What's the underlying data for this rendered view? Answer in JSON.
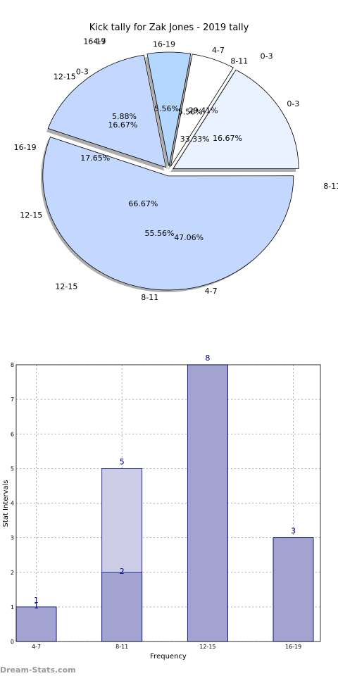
{
  "chart_data": [
    {
      "type": "pie",
      "title": "Kick tally for Zak Jones - 2019 tally",
      "rings": [
        {
          "name": "",
          "slices": [
            {
              "label": "0-3",
              "percent": 33.33,
              "pct_text": "33.33%"
            },
            {
              "label": "4-7",
              "percent": 0,
              "pct_text": ""
            },
            {
              "label": "16-19",
              "percent": 0,
              "pct_text": ""
            },
            {
              "label": "12-15",
              "percent": 66.67,
              "pct_text": "66.67%"
            },
            {
              "label": "8-11",
              "percent": 0,
              "pct_text": ""
            }
          ]
        },
        {
          "name": "",
          "slices": [
            {
              "label": "0-3",
              "percent": 16.67,
              "pct_text": "16.67%"
            },
            {
              "label": "4-7",
              "percent": 5.56,
              "pct_text": "5.56%"
            },
            {
              "label": "16-19",
              "percent": 5.56,
              "pct_text": "5.56%"
            },
            {
              "label": "12-15",
              "percent": 16.67,
              "pct_text": "16.67%"
            },
            {
              "label": "8-11",
              "percent": 55.56,
              "pct_text": "55.56%"
            }
          ]
        },
        {
          "name": "",
          "slices": [
            {
              "label": "8-11",
              "percent": 29.41,
              "pct_text": "29.41%"
            },
            {
              "label": "0-3",
              "percent": 5.88,
              "pct_text": "5.88%"
            },
            {
              "label": "16-19",
              "percent": 17.65,
              "pct_text": "17.65%"
            },
            {
              "label": "12-15",
              "percent": 0,
              "pct_text": ""
            },
            {
              "label": "4-7",
              "percent": 47.06,
              "pct_text": "47.06%"
            }
          ]
        }
      ],
      "colors": [
        "#EBF2FF",
        "#FFFFFF",
        "#B3D7FF",
        "#C4D8FF",
        "#C4D8FF"
      ]
    },
    {
      "type": "bar",
      "title": "",
      "xlabel": "Frequency",
      "ylabel": "Stat Intervals",
      "categories": [
        "4-7",
        "8-11",
        "12-15",
        "16-19"
      ],
      "series": [
        {
          "name": "",
          "values": [
            1,
            5,
            8,
            3
          ]
        },
        {
          "name": "",
          "values": [
            1,
            2,
            8,
            3
          ]
        }
      ],
      "value_labels": [
        "1",
        "5",
        "8",
        "3"
      ],
      "inner_labels": [
        "1",
        "2",
        "",
        ""
      ],
      "ylim": [
        0,
        8
      ],
      "yticks": [
        "0",
        "1",
        "2",
        "3",
        "4",
        "5",
        "6",
        "7",
        "8"
      ],
      "grid": true,
      "colors": [
        "#CCCCE6",
        "#A3A3D1"
      ]
    }
  ],
  "watermark": "Dream-Stats.com"
}
